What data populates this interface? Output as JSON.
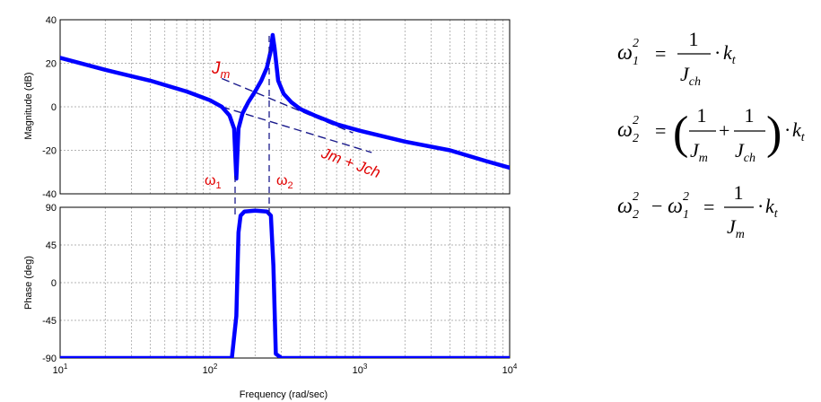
{
  "chart_data": [
    {
      "type": "line",
      "ylabel": "Magnitude (dB)",
      "x_scale": "log",
      "xlim": [
        10,
        10000
      ],
      "ylim": [
        -40,
        40
      ],
      "yticks": [
        "40",
        "20",
        "0",
        "-20",
        "-40"
      ],
      "ytick_values": [
        40,
        20,
        0,
        -20,
        -40
      ],
      "grid": true,
      "series": [
        {
          "color": "#0000ff",
          "x": [
            10,
            20,
            40,
            70,
            100,
            120,
            135,
            145,
            150,
            155,
            165,
            180,
            200,
            220,
            240,
            255,
            262,
            270,
            285,
            310,
            350,
            400,
            500,
            700,
            1000,
            2000,
            4000,
            7000,
            10000
          ],
          "y": [
            22.5,
            17,
            12,
            7,
            3,
            0,
            -4,
            -10,
            -33,
            -10,
            -3,
            2,
            7,
            12,
            18,
            26,
            33,
            27,
            12,
            6,
            2,
            -1,
            -4,
            -8,
            -11,
            -16,
            -20,
            -25,
            -28
          ]
        }
      ],
      "asymptotes": [
        {
          "x": [
            120,
            900
          ],
          "y": [
            13,
            -12
          ],
          "style": "dashed",
          "color": "#1a1a8c"
        },
        {
          "x": [
            120,
            1200
          ],
          "y": [
            0,
            -21
          ],
          "style": "dashed",
          "color": "#1a1a8c"
        }
      ],
      "annotations": [
        {
          "text": "Jm",
          "base": "J",
          "sub": "m",
          "color": "#e00000"
        },
        {
          "text": "Jm + Jch",
          "color": "#e00000"
        },
        {
          "text": "ω1",
          "base": "ω",
          "sub": "1",
          "color": "#e00000"
        },
        {
          "text": "ω2",
          "base": "ω",
          "sub": "2",
          "color": "#e00000"
        }
      ]
    },
    {
      "type": "line",
      "ylabel": "Phase (deg)",
      "xlabel": "Frequency  (rad/sec)",
      "x_scale": "log",
      "xlim": [
        10,
        10000
      ],
      "ylim": [
        -90,
        90
      ],
      "xticks": [
        "10",
        "10",
        "10",
        "10"
      ],
      "xtick_exponents": [
        "1",
        "2",
        "3",
        "4"
      ],
      "xtick_values": [
        10,
        100,
        1000,
        10000
      ],
      "yticks": [
        "90",
        "45",
        "0",
        "-45",
        "-90"
      ],
      "ytick_values": [
        90,
        45,
        0,
        -45,
        -90
      ],
      "grid": true,
      "series": [
        {
          "color": "#0000ff",
          "x": [
            10,
            140,
            150,
            155,
            160,
            170,
            200,
            240,
            255,
            265,
            275,
            300,
            10000
          ],
          "y": [
            -90,
            -90,
            -40,
            60,
            80,
            85,
            86,
            85,
            80,
            20,
            -85,
            -90,
            -90
          ]
        }
      ]
    }
  ],
  "equations": [
    {
      "lhs": "ω₁² =",
      "numerator": "1",
      "denominator": "J_ch",
      "rhs": "· k_t"
    },
    {
      "lhs": "ω₂² =",
      "term1": "1 / J_m",
      "term2": "1 / J_ch",
      "rhs": "· k_t"
    },
    {
      "lhs": "ω₂² − ω₁² =",
      "numerator": "1",
      "denominator": "J_m",
      "rhs": "· k_t"
    }
  ],
  "eq_text": {
    "omega": "ω",
    "one": "1",
    "two": "2",
    "eq": "=",
    "minus": "−",
    "plus": "+",
    "dot": "·",
    "k": "k",
    "t": "t",
    "J": "J",
    "ch": "ch",
    "m": "m",
    "lparen": "(",
    "rparen": ")"
  }
}
